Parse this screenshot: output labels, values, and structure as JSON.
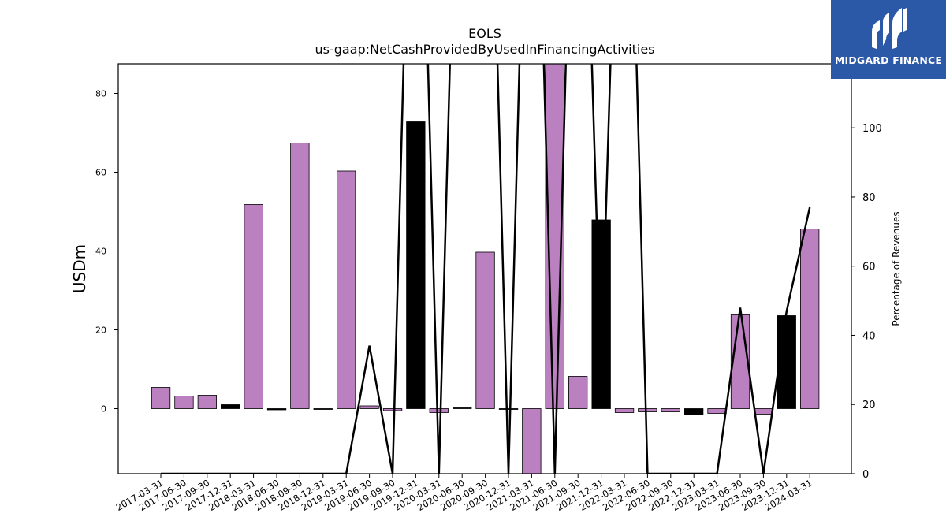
{
  "header": {
    "title": "EOLS",
    "subtitle": "us-gaap:NetCashProvidedByUsedInFinancingActivities"
  },
  "logo": {
    "text": "MIDGARD FINANCE",
    "background": "#2b59a8"
  },
  "chart_data": {
    "type": "bar",
    "categories": [
      "2017-03-31",
      "2017-06-30",
      "2017-09-30",
      "2017-12-31",
      "2018-03-31",
      "2018-06-30",
      "2018-09-30",
      "2018-12-31",
      "2019-03-31",
      "2019-06-30",
      "2019-09-30",
      "2019-12-31",
      "2020-03-31",
      "2020-06-30",
      "2020-09-30",
      "2020-12-31",
      "2021-03-31",
      "2021-06-30",
      "2021-09-30",
      "2021-12-31",
      "2022-03-31",
      "2022-06-30",
      "2022-09-30",
      "2022-12-31",
      "2023-03-31",
      "2023-06-30",
      "2023-09-30",
      "2023-12-31",
      "2024-03-31"
    ],
    "values": [
      5.4,
      3.2,
      3.4,
      1.0,
      51.8,
      -0.3,
      67.4,
      0.0,
      60.3,
      0.7,
      -0.5,
      72.8,
      -1.0,
      0.2,
      39.7,
      0.0,
      -17.5,
      88.0,
      8.2,
      47.9,
      -1.0,
      -0.8,
      -0.8,
      -1.6,
      -1.2,
      23.8,
      -1.4,
      23.6,
      45.6
    ],
    "bar_colors": [
      "#bb80bf",
      "#bb80bf",
      "#bb80bf",
      "#000000",
      "#bb80bf",
      "#000000",
      "#bb80bf",
      "#000000",
      "#bb80bf",
      "#bb80bf",
      "#bb80bf",
      "#000000",
      "#bb80bf",
      "#000000",
      "#bb80bf",
      "#000000",
      "#bb80bf",
      "#bb80bf",
      "#bb80bf",
      "#000000",
      "#bb80bf",
      "#bb80bf",
      "#bb80bf",
      "#000000",
      "#bb80bf",
      "#bb80bf",
      "#bb80bf",
      "#000000",
      "#bb80bf"
    ],
    "line_values": [
      0,
      0,
      0,
      0,
      0,
      0,
      0,
      0,
      0,
      37,
      0,
      250,
      0,
      250,
      250,
      0,
      250,
      0,
      250,
      30.5,
      250,
      0,
      0,
      0,
      0,
      48,
      0,
      47,
      77
    ],
    "ylabel": "USDm",
    "ylabel_right": "Percentage of Revenues",
    "ylim": [
      -16.5,
      87.5
    ],
    "ylim_right": [
      0,
      118.5
    ],
    "yticks": [
      0,
      20,
      40,
      60,
      80
    ],
    "yticks_right": [
      0,
      20,
      40,
      60,
      80,
      100
    ],
    "grid": false,
    "colors": {
      "bar": "#bb80bf",
      "bar_alt": "#000000",
      "line": "#000000",
      "edge": "#000000"
    }
  }
}
